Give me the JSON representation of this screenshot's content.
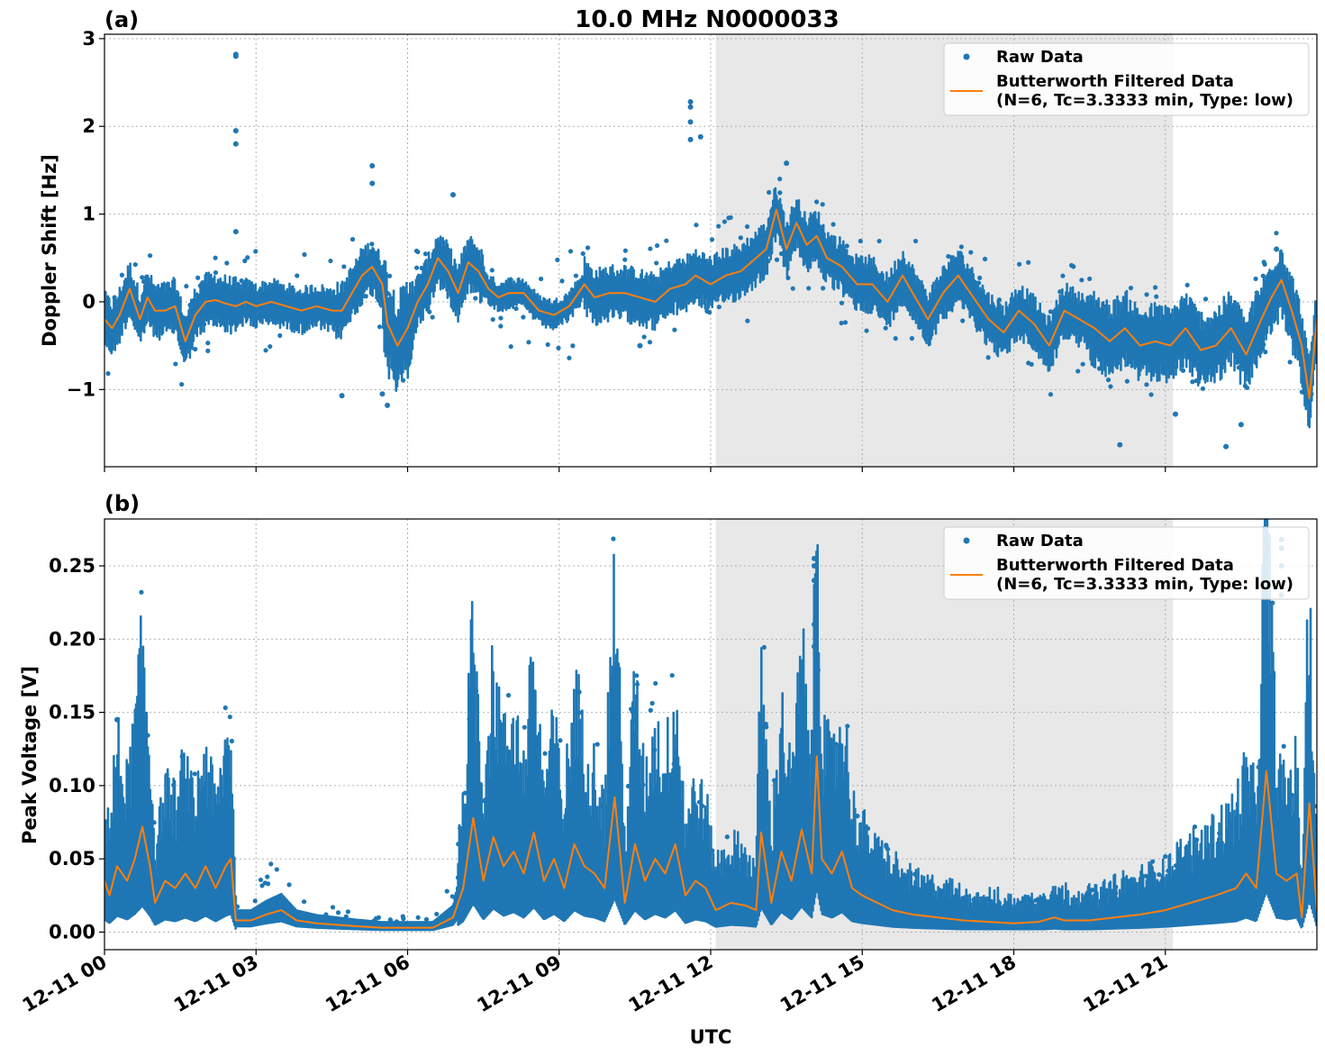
{
  "figure": {
    "title": "10.0 MHz N0000033",
    "xlabel": "UTC",
    "x_tick_labels": [
      "12-11 00",
      "12-11 03",
      "12-11 06",
      "12-11 09",
      "12-11 12",
      "12-11 15",
      "12-11 18",
      "12-11 21"
    ],
    "shaded_region_utc_hours": [
      12.1,
      21.15
    ],
    "colors": {
      "raw": "#1f77b4",
      "filtered": "#ff7f0e",
      "shade": "#e8e8e8",
      "grid": "#b0b0b0"
    },
    "legend": {
      "raw_label": "Raw Data",
      "filtered_label_line1": "Butterworth Filtered Data",
      "filtered_label_line2": "(N=6, Tc=3.3333 min, Type: low)",
      "placement": "top-right"
    }
  },
  "chart_data": [
    {
      "type": "scatter",
      "panel_label": "(a)",
      "title": "10.0 MHz N0000033",
      "ylabel": "Doppler Shift [Hz]",
      "xlabel": "",
      "xlim": [
        0,
        24
      ],
      "ylim": [
        -1.88,
        3.05
      ],
      "y_ticks": [
        3,
        2,
        1,
        0,
        -1
      ],
      "y_tick_labels": [
        "3",
        "2",
        "1",
        "0",
        "−1"
      ],
      "grid": true,
      "series": [
        {
          "name": "Butterworth Filtered Data (N=6, Tc=3.3333 min, Type: low)",
          "kind": "line",
          "x": [
            0.0,
            0.15,
            0.3,
            0.5,
            0.7,
            0.85,
            1.0,
            1.2,
            1.4,
            1.6,
            1.8,
            2.0,
            2.2,
            2.4,
            2.6,
            2.8,
            3.0,
            3.3,
            3.6,
            3.9,
            4.2,
            4.5,
            4.7,
            4.9,
            5.1,
            5.3,
            5.5,
            5.6,
            5.8,
            6.0,
            6.2,
            6.4,
            6.6,
            6.8,
            7.0,
            7.2,
            7.4,
            7.6,
            7.8,
            8.0,
            8.3,
            8.6,
            8.9,
            9.2,
            9.5,
            9.7,
            10.0,
            10.3,
            10.6,
            10.9,
            11.2,
            11.5,
            11.7,
            12.0,
            12.3,
            12.6,
            12.9,
            13.1,
            13.3,
            13.5,
            13.7,
            13.9,
            14.1,
            14.3,
            14.6,
            14.9,
            15.2,
            15.5,
            15.8,
            16.0,
            16.3,
            16.6,
            16.9,
            17.2,
            17.5,
            17.8,
            18.1,
            18.4,
            18.7,
            19.0,
            19.3,
            19.6,
            19.9,
            20.2,
            20.5,
            20.8,
            21.1,
            21.4,
            21.7,
            22.0,
            22.3,
            22.6,
            22.9,
            23.1,
            23.3,
            23.5,
            23.7,
            23.85,
            24.0
          ],
          "y": [
            -0.2,
            -0.3,
            -0.15,
            0.15,
            -0.2,
            0.05,
            -0.1,
            -0.1,
            -0.05,
            -0.45,
            -0.15,
            0.0,
            0.02,
            -0.02,
            -0.05,
            0.0,
            -0.05,
            0.0,
            -0.05,
            -0.1,
            -0.05,
            -0.1,
            -0.1,
            0.1,
            0.3,
            0.4,
            0.2,
            -0.25,
            -0.5,
            -0.3,
            0.0,
            0.2,
            0.5,
            0.35,
            0.1,
            0.45,
            0.35,
            0.15,
            0.05,
            0.1,
            0.1,
            -0.1,
            -0.15,
            -0.05,
            0.2,
            0.05,
            0.1,
            0.1,
            0.05,
            0.0,
            0.15,
            0.2,
            0.3,
            0.2,
            0.3,
            0.35,
            0.5,
            0.6,
            1.05,
            0.6,
            0.9,
            0.65,
            0.75,
            0.5,
            0.4,
            0.2,
            0.2,
            0.0,
            0.3,
            0.1,
            -0.2,
            0.1,
            0.3,
            0.05,
            -0.2,
            -0.35,
            -0.1,
            -0.25,
            -0.5,
            -0.1,
            -0.2,
            -0.3,
            -0.45,
            -0.3,
            -0.5,
            -0.45,
            -0.5,
            -0.3,
            -0.55,
            -0.5,
            -0.3,
            -0.6,
            -0.2,
            0.05,
            0.25,
            -0.1,
            -0.5,
            -1.1,
            -0.2
          ]
        },
        {
          "name": "Raw Data",
          "kind": "points",
          "x": [
            2.6,
            2.6,
            2.6,
            2.6,
            2.6,
            11.6,
            11.6,
            11.6,
            11.6,
            11.8,
            13.5,
            5.3,
            5.3,
            6.9,
            5.6,
            4.7,
            5.5,
            10.6,
            20.1,
            21.2,
            22.2,
            22.5,
            23.2
          ],
          "y": [
            2.82,
            2.8,
            1.95,
            1.8,
            0.8,
            2.28,
            2.22,
            2.05,
            1.85,
            1.88,
            1.58,
            1.55,
            1.35,
            1.22,
            -1.18,
            -1.07,
            -1.05,
            -0.5,
            -1.63,
            -1.28,
            -1.65,
            -1.4,
            0.6
          ]
        }
      ]
    },
    {
      "type": "scatter",
      "panel_label": "(b)",
      "ylabel": "Peak Voltage [V]",
      "xlabel": "UTC",
      "xlim": [
        0,
        24
      ],
      "ylim": [
        -0.012,
        0.282
      ],
      "y_ticks": [
        0.25,
        0.2,
        0.15,
        0.1,
        0.05,
        0.0
      ],
      "y_tick_labels": [
        "0.25",
        "0.20",
        "0.15",
        "0.10",
        "0.05",
        "0.00"
      ],
      "grid": true,
      "series": [
        {
          "name": "Butterworth Filtered Data (N=6, Tc=3.3333 min, Type: low)",
          "kind": "line",
          "x": [
            0.0,
            0.1,
            0.25,
            0.45,
            0.6,
            0.75,
            0.9,
            1.0,
            1.2,
            1.4,
            1.6,
            1.8,
            2.0,
            2.2,
            2.4,
            2.5,
            2.6,
            2.9,
            3.2,
            3.5,
            3.8,
            4.2,
            4.6,
            5.0,
            5.5,
            6.0,
            6.5,
            6.9,
            7.1,
            7.3,
            7.5,
            7.7,
            7.9,
            8.1,
            8.3,
            8.5,
            8.7,
            8.9,
            9.1,
            9.3,
            9.5,
            9.7,
            9.9,
            10.1,
            10.3,
            10.5,
            10.7,
            10.9,
            11.1,
            11.3,
            11.5,
            11.7,
            11.9,
            12.1,
            12.4,
            12.7,
            12.9,
            13.0,
            13.2,
            13.4,
            13.6,
            13.8,
            14.0,
            14.1,
            14.2,
            14.4,
            14.6,
            14.8,
            15.0,
            15.3,
            15.6,
            16.0,
            16.5,
            17.0,
            17.5,
            18.0,
            18.5,
            18.8,
            19.0,
            19.5,
            20.0,
            20.5,
            21.0,
            21.5,
            22.0,
            22.4,
            22.6,
            22.8,
            23.0,
            23.2,
            23.4,
            23.6,
            23.7,
            23.85,
            24.0
          ],
          "y": [
            0.035,
            0.025,
            0.045,
            0.035,
            0.05,
            0.072,
            0.045,
            0.02,
            0.035,
            0.03,
            0.04,
            0.03,
            0.045,
            0.03,
            0.045,
            0.05,
            0.008,
            0.008,
            0.012,
            0.015,
            0.008,
            0.006,
            0.005,
            0.004,
            0.003,
            0.003,
            0.003,
            0.01,
            0.03,
            0.078,
            0.035,
            0.065,
            0.045,
            0.055,
            0.04,
            0.068,
            0.035,
            0.05,
            0.03,
            0.06,
            0.045,
            0.04,
            0.03,
            0.092,
            0.02,
            0.06,
            0.035,
            0.05,
            0.04,
            0.06,
            0.025,
            0.035,
            0.03,
            0.015,
            0.02,
            0.018,
            0.015,
            0.068,
            0.02,
            0.055,
            0.035,
            0.07,
            0.04,
            0.12,
            0.05,
            0.04,
            0.055,
            0.03,
            0.025,
            0.02,
            0.015,
            0.012,
            0.01,
            0.008,
            0.007,
            0.006,
            0.007,
            0.01,
            0.008,
            0.008,
            0.01,
            0.012,
            0.015,
            0.02,
            0.025,
            0.03,
            0.04,
            0.03,
            0.11,
            0.04,
            0.035,
            0.04,
            0.01,
            0.088,
            0.015
          ]
        },
        {
          "name": "Raw Data",
          "kind": "points",
          "x": [
            14.05,
            14.05,
            14.05,
            14.05,
            14.05,
            23.3,
            23.3,
            23.3,
            23.3,
            0.75,
            0.75,
            0.25,
            10.1,
            10.1,
            7.3,
            7.3,
            13.0,
            13.0,
            1.55,
            2.25
          ],
          "y": [
            0.255,
            0.25,
            0.24,
            0.21,
            0.195,
            0.268,
            0.262,
            0.25,
            0.23,
            0.173,
            0.168,
            0.145,
            0.177,
            0.172,
            0.157,
            0.152,
            0.14,
            0.135,
            0.1,
            0.08
          ]
        }
      ]
    }
  ]
}
